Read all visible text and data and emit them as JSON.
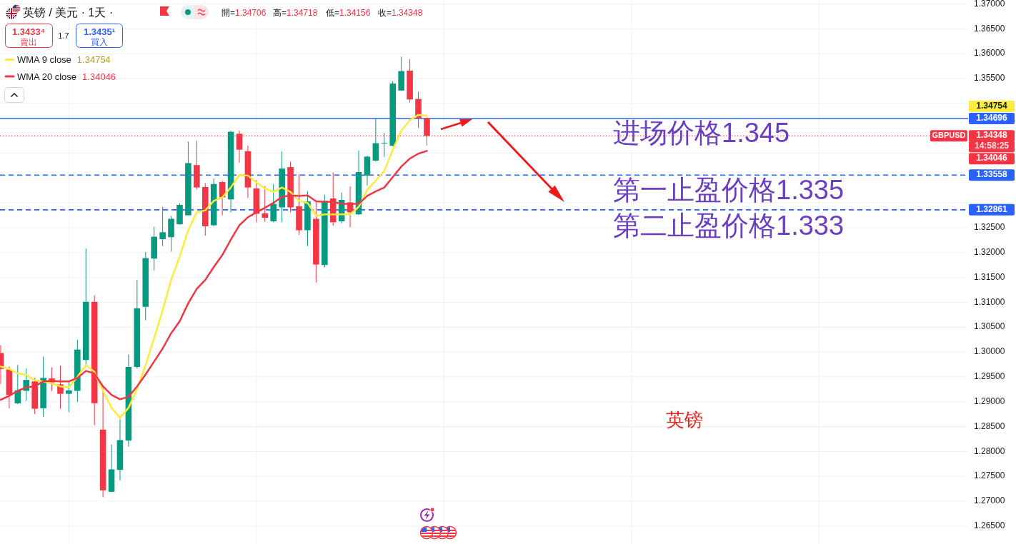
{
  "chart_data": {
    "type": "candlestick",
    "title": "英镑 / 美元 · 1天 ·",
    "categories": [
      null,
      null,
      null,
      null,
      null,
      null,
      null,
      null,
      null,
      null,
      null,
      null,
      null,
      null,
      null,
      null,
      null,
      null,
      null,
      null,
      null,
      null,
      null,
      null,
      null,
      null,
      null,
      null,
      null,
      null,
      null,
      null,
      null,
      null,
      null,
      null,
      null,
      null,
      null,
      null,
      null,
      null,
      null,
      null,
      null,
      null,
      null,
      null,
      null,
      null,
      null,
      null,
      null,
      null,
      null,
      null,
      null,
      null,
      null,
      null,
      null,
      null,
      null,
      null,
      null,
      null,
      null,
      null,
      null,
      null,
      null,
      null,
      null,
      null,
      null,
      null,
      null,
      null,
      null,
      null,
      null,
      null,
      null,
      null,
      null,
      null,
      null,
      null,
      null,
      null,
      null,
      null,
      null,
      null,
      null,
      null,
      null,
      null,
      null,
      null,
      null,
      null,
      null,
      null,
      null,
      null,
      null,
      null,
      null,
      null,
      null,
      null,
      null,
      null
    ],
    "ohlc": [
      [
        1.2998,
        1.3014,
        1.2936,
        1.2966
      ],
      [
        1.2965,
        1.2971,
        1.2887,
        1.2914
      ],
      [
        1.2897,
        1.2974,
        1.2895,
        1.2923
      ],
      [
        1.2922,
        1.2967,
        1.2902,
        1.2944
      ],
      [
        1.2941,
        1.2948,
        1.2875,
        1.2886
      ],
      [
        1.2887,
        1.2991,
        1.287,
        1.2948
      ],
      [
        1.2947,
        1.2969,
        1.2922,
        1.2939
      ],
      [
        1.2935,
        1.2973,
        1.2886,
        1.2916
      ],
      [
        1.2916,
        1.2941,
        1.2879,
        1.2923
      ],
      [
        1.2922,
        1.3025,
        1.29,
        1.3005
      ],
      [
        1.2984,
        1.3208,
        1.2973,
        1.3101
      ],
      [
        1.3101,
        1.3114,
        1.2853,
        1.2897
      ],
      [
        1.2844,
        1.2931,
        1.2708,
        1.2722
      ],
      [
        1.2719,
        1.2814,
        1.2718,
        1.2764
      ],
      [
        1.2763,
        1.2865,
        1.2742,
        1.2823
      ],
      [
        1.2822,
        1.2995,
        1.281,
        1.297
      ],
      [
        1.297,
        1.3145,
        1.2967,
        1.3088
      ],
      [
        1.3091,
        1.3201,
        1.3064,
        1.3189
      ],
      [
        1.3188,
        1.3252,
        1.3164,
        1.3232
      ],
      [
        1.3227,
        1.3292,
        1.3213,
        1.3241
      ],
      [
        1.3231,
        1.3274,
        1.3202,
        1.3268
      ],
      [
        1.3257,
        1.3299,
        1.3256,
        1.3296
      ],
      [
        1.3275,
        1.3423,
        1.3275,
        1.338
      ],
      [
        1.3376,
        1.3425,
        1.3327,
        1.3331
      ],
      [
        1.3332,
        1.334,
        1.3234,
        1.3253
      ],
      [
        1.3255,
        1.3349,
        1.3253,
        1.3338
      ],
      [
        1.3342,
        1.3344,
        1.3275,
        1.3311
      ],
      [
        1.3307,
        1.3445,
        1.3281,
        1.3443
      ],
      [
        1.3439,
        1.3445,
        1.3381,
        1.3407
      ],
      [
        1.3404,
        1.3415,
        1.331,
        1.3331
      ],
      [
        1.3329,
        1.3346,
        1.3261,
        1.3278
      ],
      [
        1.3279,
        1.3334,
        1.3262,
        1.327
      ],
      [
        1.3263,
        1.3338,
        1.3261,
        1.3298
      ],
      [
        1.3291,
        1.3403,
        1.3261,
        1.3369
      ],
      [
        1.3372,
        1.3383,
        1.3281,
        1.3291
      ],
      [
        1.3293,
        1.3358,
        1.3236,
        1.3245
      ],
      [
        1.3245,
        1.3323,
        1.3213,
        1.3303
      ],
      [
        1.3268,
        1.3301,
        1.314,
        1.3176
      ],
      [
        1.3175,
        1.3316,
        1.317,
        1.3304
      ],
      [
        1.3309,
        1.3361,
        1.3254,
        1.3261
      ],
      [
        1.3263,
        1.3321,
        1.3259,
        1.3306
      ],
      [
        1.3301,
        1.3333,
        1.3251,
        1.3281
      ],
      [
        1.3277,
        1.3405,
        1.3276,
        1.3362
      ],
      [
        1.3355,
        1.3395,
        1.3335,
        1.3393
      ],
      [
        1.3385,
        1.347,
        1.3383,
        1.342
      ],
      [
        1.342,
        1.3441,
        1.3392,
        1.3421
      ],
      [
        1.3415,
        1.3545,
        1.3414,
        1.354
      ],
      [
        1.3526,
        1.3594,
        1.3525,
        1.3565
      ],
      [
        1.3566,
        1.3589,
        1.3502,
        1.3508
      ],
      [
        1.3509,
        1.3523,
        1.3451,
        1.347
      ],
      [
        1.34706,
        1.34718,
        1.34156,
        1.34348
      ],
      null,
      null,
      null,
      null,
      null,
      null,
      null,
      null,
      null,
      null,
      null,
      null,
      null,
      null,
      null,
      null,
      null,
      null,
      null,
      null,
      null,
      null,
      null,
      null,
      null,
      null,
      null,
      null,
      null,
      null,
      null,
      null,
      null,
      null,
      null,
      null,
      null,
      null,
      null,
      null,
      null,
      null,
      null,
      null,
      null,
      null,
      null,
      null,
      null,
      null,
      null,
      null,
      null,
      null,
      null,
      null,
      null,
      null,
      null,
      null,
      null,
      null,
      null
    ],
    "colors": [
      "#f23645",
      "#f23645",
      "#089981",
      "#089981",
      "#f23645",
      "#089981",
      "#f23645",
      "#f23645",
      "#089981",
      "#089981",
      "#089981",
      "#f23645",
      "#f23645",
      "#089981",
      "#089981",
      "#089981",
      "#089981",
      "#089981",
      "#089981",
      "#089981",
      "#089981",
      "#089981",
      "#089981",
      "#f23645",
      "#f23645",
      "#089981",
      "#f23645",
      "#089981",
      "#f23645",
      "#f23645",
      "#f23645",
      "#f23645",
      "#089981",
      "#089981",
      "#f23645",
      "#f23645",
      "#089981",
      "#f23645",
      "#089981",
      "#f23645",
      "#089981",
      "#f23645",
      "#089981",
      "#089981",
      "#089981",
      "#089981",
      "#089981",
      "#089981",
      "#f23645",
      "#f23645",
      "#f23645",
      null,
      null,
      null,
      null,
      null,
      null,
      null,
      null,
      null,
      null,
      null,
      null,
      null,
      null,
      null,
      null,
      null,
      null,
      null,
      null,
      null,
      null,
      null,
      null,
      null,
      null,
      null,
      null,
      null,
      null,
      null,
      null,
      null,
      null,
      null,
      null,
      null,
      null,
      null,
      null,
      null,
      null,
      null,
      null,
      null,
      null,
      null,
      null,
      null,
      null,
      null,
      null,
      null,
      null,
      null,
      null,
      null,
      null,
      null,
      null,
      null,
      null,
      null
    ],
    "series": [
      {
        "name": "WMA 9 close",
        "type": "line",
        "color": "#ffeb3b",
        "values": [
          1.2971,
          1.2966,
          1.2957,
          1.2954,
          1.2943,
          1.2941,
          1.2937,
          1.2931,
          1.2929,
          1.295,
          1.2974,
          1.296,
          1.2922,
          1.2888,
          1.2868,
          1.2888,
          1.2926,
          1.2974,
          1.3028,
          1.3084,
          1.3145,
          1.3192,
          1.3245,
          1.3281,
          1.3285,
          1.3304,
          1.3311,
          1.3331,
          1.3356,
          1.3355,
          1.3341,
          1.3329,
          1.3322,
          1.3331,
          1.3322,
          1.3304,
          1.33,
          1.3274,
          1.3277,
          1.3277,
          1.3277,
          1.3277,
          1.3292,
          1.3326,
          1.3345,
          1.3364,
          1.3407,
          1.3445,
          1.3466,
          1.3477,
          1.34754,
          null,
          null,
          null,
          null,
          null,
          null,
          null,
          null,
          null,
          null,
          null,
          null,
          null,
          null,
          null,
          null,
          null,
          null,
          null,
          null,
          null,
          null,
          null,
          null,
          null,
          null,
          null,
          null,
          null,
          null,
          null,
          null,
          null,
          null,
          null,
          null,
          null,
          null,
          null,
          null,
          null,
          null,
          null,
          null,
          null,
          null,
          null,
          null,
          null,
          null,
          null,
          null,
          null,
          null,
          null,
          null,
          null,
          null,
          null,
          null,
          null,
          null,
          null
        ]
      },
      {
        "name": "WMA 20 close",
        "type": "line",
        "color": "#f23645",
        "values": [
          1.2904,
          1.2912,
          1.2922,
          1.2929,
          1.2931,
          1.2941,
          1.2942,
          1.2941,
          1.2941,
          1.2948,
          1.2962,
          1.2957,
          1.2931,
          1.2914,
          1.2905,
          1.291,
          1.2931,
          1.2955,
          1.2981,
          1.3007,
          1.3038,
          1.3062,
          1.3098,
          1.3127,
          1.3145,
          1.3171,
          1.3195,
          1.3226,
          1.3255,
          1.3271,
          1.3281,
          1.329,
          1.33,
          1.3312,
          1.3315,
          1.3314,
          1.3315,
          1.3303,
          1.3302,
          1.3302,
          1.3298,
          1.3298,
          1.3298,
          1.3314,
          1.3323,
          1.3331,
          1.3352,
          1.3373,
          1.3389,
          1.3399,
          1.34046,
          null,
          null,
          null,
          null,
          null,
          null,
          null,
          null,
          null,
          null,
          null,
          null,
          null,
          null,
          null,
          null,
          null,
          null,
          null,
          null,
          null,
          null,
          null,
          null,
          null,
          null,
          null,
          null,
          null,
          null,
          null,
          null,
          null,
          null,
          null,
          null,
          null,
          null,
          null,
          null,
          null,
          null,
          null,
          null,
          null,
          null,
          null,
          null,
          null,
          null,
          null,
          null,
          null,
          null,
          null,
          null,
          null,
          null,
          null,
          null,
          null,
          null,
          null
        ]
      }
    ],
    "ylim": [
      1.2614,
      1.3708
    ],
    "yticks": [
      {
        "value": 1.265,
        "label": "1.26500"
      },
      {
        "value": 1.27,
        "label": "1.27000"
      },
      {
        "value": 1.275,
        "label": "1.27500"
      },
      {
        "value": 1.28,
        "label": "1.28000"
      },
      {
        "value": 1.285,
        "label": "1.28500"
      },
      {
        "value": 1.29,
        "label": "1.29000"
      },
      {
        "value": 1.295,
        "label": "1.29500"
      },
      {
        "value": 1.3,
        "label": "1.30000"
      },
      {
        "value": 1.305,
        "label": "1.30500"
      },
      {
        "value": 1.31,
        "label": "1.31000"
      },
      {
        "value": 1.315,
        "label": "1.31500"
      },
      {
        "value": 1.32,
        "label": "1.32000"
      },
      {
        "value": 1.325,
        "label": "1.32500"
      },
      {
        "value": 1.33,
        "label": null
      },
      {
        "value": 1.335,
        "label": null
      },
      {
        "value": 1.34,
        "label": null
      },
      {
        "value": 1.345,
        "label": null
      },
      {
        "value": 1.35,
        "label": null
      },
      {
        "value": 1.355,
        "label": "1.35500"
      },
      {
        "value": 1.36,
        "label": "1.36000"
      },
      {
        "value": 1.365,
        "label": "1.36500"
      },
      {
        "value": 1.37,
        "label": "1.37000"
      }
    ],
    "ref_lines": [
      {
        "axis": "y",
        "value": 1.34696,
        "label": "1.34696",
        "color": "#2962ff",
        "line_style": "solid"
      },
      {
        "axis": "y",
        "value": 1.33558,
        "label": "1.33558",
        "color": "#2962ff",
        "line_style": "dashed"
      },
      {
        "axis": "y",
        "value": 1.32861,
        "label": "1.32861",
        "color": "#2962ff",
        "line_style": "dashed"
      },
      {
        "axis": "y",
        "value": 1.34348,
        "label": "1.34348",
        "color": "#f23645",
        "line_style": "dotted"
      }
    ],
    "annotations": [
      "1.3433⁴",
      "賣出",
      "1.7",
      "1.3435¹",
      "買入",
      "開=1.34706",
      "高=1.34718",
      "低=1.34156",
      "收=1.34348",
      "进场价格1.345",
      "第一止盈价格1.335",
      "第二止盈价格1.333",
      "英镑",
      {
        "text": "GBPUSD",
        "y": 1.34348
      },
      "14:58:25",
      "1.34754",
      "1.34046",
      "1.34754",
      "1.34046"
    ],
    "grid": true,
    "legend": "top left",
    "tick_labels": "y"
  }
}
